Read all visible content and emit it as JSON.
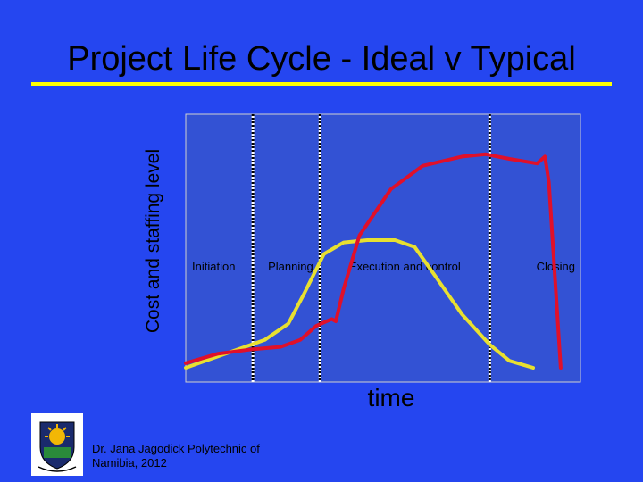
{
  "slide": {
    "title": "Project Life Cycle - Ideal v Typical",
    "credit": "Dr. Jana Jagodick   Polytechnic of Namibia, 2012"
  },
  "colors": {
    "background": "#2546f0",
    "plot_area": "#3352d4",
    "title_rule": "#ffff00",
    "ideal_line": "#e8e030",
    "typical_line": "#e0102a"
  },
  "chart_data": {
    "type": "line",
    "xlabel": "time",
    "ylabel": "Cost and staffing level",
    "phases": [
      "Initiation",
      "Planning",
      "Execution and control",
      "Closing"
    ],
    "phase_boundaries": [
      0.17,
      0.34,
      0.77
    ],
    "x_range": [
      0,
      1
    ],
    "y_range": [
      0,
      1
    ],
    "grid": false,
    "series": [
      {
        "color": "#e8e030",
        "x": [
          0.0,
          0.1,
          0.2,
          0.26,
          0.3,
          0.35,
          0.4,
          0.46,
          0.53,
          0.58,
          0.63,
          0.7,
          0.77,
          0.82,
          0.88
        ],
        "y": [
          0.0,
          0.06,
          0.12,
          0.19,
          0.32,
          0.49,
          0.54,
          0.55,
          0.55,
          0.52,
          0.4,
          0.23,
          0.1,
          0.03,
          0.0
        ]
      },
      {
        "color": "#e0102a",
        "x": [
          0.0,
          0.08,
          0.17,
          0.24,
          0.29,
          0.33,
          0.37,
          0.38,
          0.4,
          0.44,
          0.52,
          0.6,
          0.7,
          0.76,
          0.82,
          0.89,
          0.91,
          0.92,
          0.95
        ],
        "y": [
          0.02,
          0.06,
          0.08,
          0.09,
          0.12,
          0.18,
          0.21,
          0.2,
          0.34,
          0.57,
          0.77,
          0.87,
          0.91,
          0.92,
          0.9,
          0.88,
          0.91,
          0.8,
          0.0
        ]
      }
    ]
  }
}
